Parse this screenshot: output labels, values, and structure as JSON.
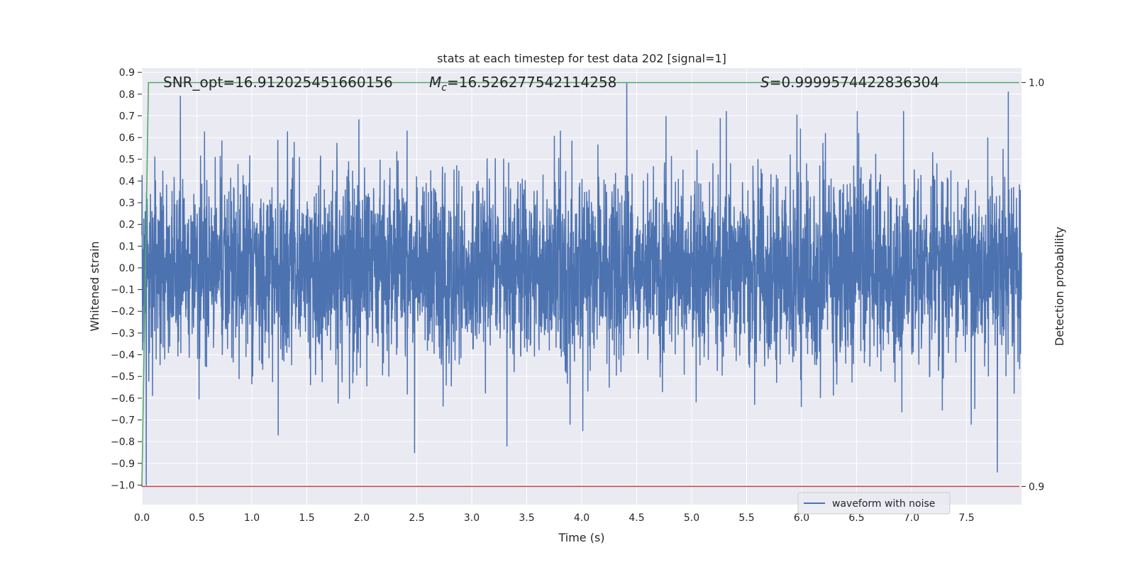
{
  "chart_data": {
    "type": "line",
    "title": "stats at each timestep for test data 202 [signal=1]",
    "xlabel": "Time (s)",
    "ylabel": "Whitened strain",
    "y2label": "Detection probability",
    "xlim": [
      0.0,
      8.0
    ],
    "ylim": [
      -1.09,
      0.92
    ],
    "y2lim": [
      0.8955,
      1.0036
    ],
    "x_ticks": [
      "0.0",
      "0.5",
      "1.0",
      "1.5",
      "2.0",
      "2.5",
      "3.0",
      "3.5",
      "4.0",
      "4.5",
      "5.0",
      "5.5",
      "6.0",
      "6.5",
      "7.0",
      "7.5"
    ],
    "y_ticks": [
      "−1.0",
      "−0.9",
      "−0.8",
      "−0.7",
      "−0.6",
      "−0.5",
      "−0.4",
      "−0.3",
      "−0.2",
      "−0.1",
      "0.0",
      "0.1",
      "0.2",
      "0.3",
      "0.4",
      "0.5",
      "0.6",
      "0.7",
      "0.8",
      "0.9"
    ],
    "y2_ticks": [
      "0.9",
      "1.0"
    ],
    "grid": true,
    "legend_position": "lower-right",
    "annotations": {
      "snr": "SNR_opt=16.912025451660156",
      "mc_symbol": "M",
      "mc_sub": "c",
      "mc_value": "=16.526277542114258",
      "s_symbol": "S",
      "s_value": "=0.9999574422836304"
    },
    "series": [
      {
        "name": "waveform with noise",
        "axis": "left",
        "color": "#4c72b0",
        "kind": "noisy-strain",
        "x_range": [
          0.0,
          8.0
        ],
        "typical_amplitude": [
          -0.35,
          0.35
        ],
        "notable_peaks": [
          {
            "x": 0.04,
            "y": -1.0
          },
          {
            "x": 0.35,
            "y": 0.79
          },
          {
            "x": 1.24,
            "y": -0.77
          },
          {
            "x": 2.48,
            "y": -0.85
          },
          {
            "x": 3.32,
            "y": -0.82
          },
          {
            "x": 4.01,
            "y": -0.75
          },
          {
            "x": 4.41,
            "y": 0.85
          },
          {
            "x": 7.78,
            "y": -0.94
          },
          {
            "x": 7.88,
            "y": 0.81
          }
        ]
      },
      {
        "axis": "right",
        "color": "#55a868",
        "x": [
          0.0,
          0.06,
          7.98
        ],
        "y": [
          0.9,
          1.0,
          1.0
        ]
      },
      {
        "axis": "right",
        "color": "#c44e52",
        "x": [
          0.0,
          7.98
        ],
        "y": [
          0.9,
          0.9
        ]
      }
    ]
  }
}
